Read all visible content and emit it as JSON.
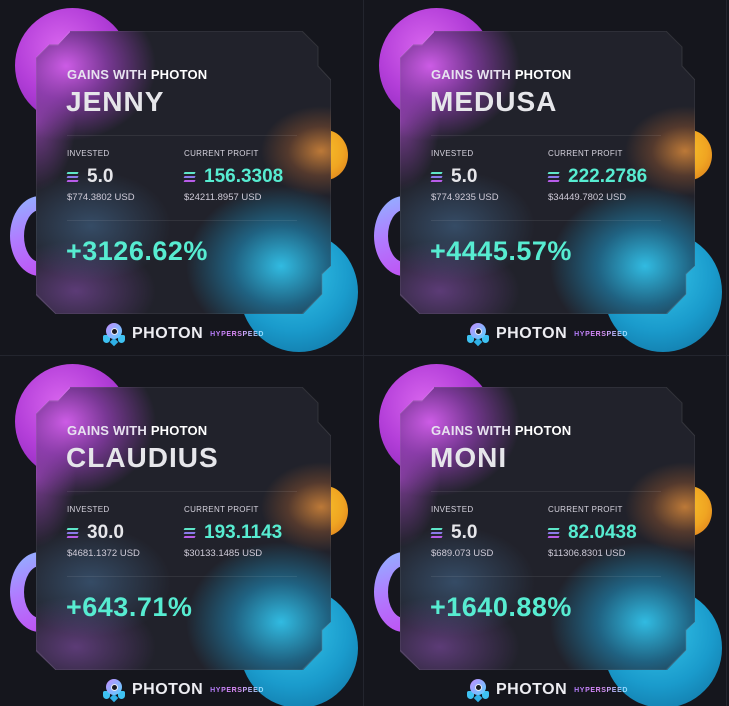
{
  "cards": [
    {
      "subtitle_prefix": "GAINS WITH ",
      "subtitle_brand": "PHOTON",
      "name": "JENNY",
      "invested_label": "INVESTED",
      "invested_value": "5.0",
      "invested_usd": "$774.3802 USD",
      "profit_label": "CURRENT PROFIT",
      "profit_value": "156.3308",
      "profit_usd": "$24211.8957 USD",
      "percent": "+3126.62%",
      "logo_text": "PHOTON",
      "logo_tag": "HYPERSPEED"
    },
    {
      "subtitle_prefix": "GAINS WITH ",
      "subtitle_brand": "PHOTON",
      "name": "MEDUSA",
      "invested_label": "INVESTED",
      "invested_value": "5.0",
      "invested_usd": "$774.9235 USD",
      "profit_label": "CURRENT PROFIT",
      "profit_value": "222.2786",
      "profit_usd": "$34449.7802 USD",
      "percent": "+4445.57%",
      "logo_text": "PHOTON",
      "logo_tag": "HYPERSPEED"
    },
    {
      "subtitle_prefix": "GAINS WITH ",
      "subtitle_brand": "PHOTON",
      "name": "CLAUDIUS",
      "invested_label": "INVESTED",
      "invested_value": "30.0",
      "invested_usd": "$4681.1372 USD",
      "profit_label": "CURRENT PROFIT",
      "profit_value": "193.1143",
      "profit_usd": "$30133.1485 USD",
      "percent": "+643.71%",
      "logo_text": "PHOTON",
      "logo_tag": "HYPERSPEED"
    },
    {
      "subtitle_prefix": "GAINS WITH ",
      "subtitle_brand": "PHOTON",
      "name": "MONI",
      "invested_label": "INVESTED",
      "invested_value": "5.0",
      "invested_usd": "$689.073 USD",
      "profit_label": "CURRENT PROFIT",
      "profit_value": "82.0438",
      "profit_usd": "$11306.8301 USD",
      "percent": "+1640.88%",
      "logo_text": "PHOTON",
      "logo_tag": "HYPERSPEED"
    }
  ],
  "colors": {
    "background": "#15161d",
    "accent_teal": "#57ecd1",
    "purple": "#b43fd9",
    "orange": "#f0a522",
    "blue": "#1a9bcc"
  },
  "icons": {
    "currency": "solana-icon",
    "logo": "photon-rocket-icon"
  }
}
